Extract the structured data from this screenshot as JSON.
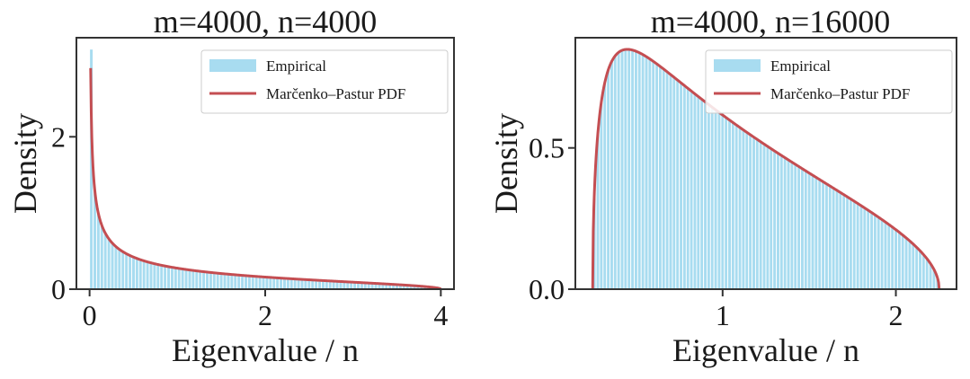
{
  "colors": {
    "hist": "#a8dcf0",
    "curve": "#c44e52"
  },
  "chart_data": [
    {
      "type": "bar",
      "title": "m=4000, n=4000",
      "xlabel": "Eigenvalue / n",
      "ylabel": "Density",
      "m": 4000,
      "n": 4000,
      "xlim": [
        -0.15,
        4.15
      ],
      "ylim": [
        0,
        3.3
      ],
      "xticks": [
        0,
        2,
        4
      ],
      "xtick_labels": [
        "0",
        "2",
        "4"
      ],
      "yticks": [
        0,
        2
      ],
      "ytick_labels": [
        "0",
        "2"
      ],
      "bins": 100,
      "first_bin_value": 3.15,
      "legend": [
        "Empirical",
        "Marčenko–Pastur PDF"
      ],
      "legend_loc": "upper right"
    },
    {
      "type": "bar",
      "title": "m=4000, n=16000",
      "xlabel": "Eigenvalue / n",
      "ylabel": "Density",
      "m": 4000,
      "n": 16000,
      "xlim": [
        0.15,
        2.35
      ],
      "ylim": [
        0,
        0.89
      ],
      "xticks": [
        1,
        2
      ],
      "xtick_labels": [
        "1",
        "2"
      ],
      "yticks": [
        0,
        0.5
      ],
      "ytick_labels": [
        "0.0",
        "0.5"
      ],
      "bins": 100,
      "legend": [
        "Empirical",
        "Marčenko–Pastur PDF"
      ],
      "legend_loc": "upper right"
    }
  ]
}
